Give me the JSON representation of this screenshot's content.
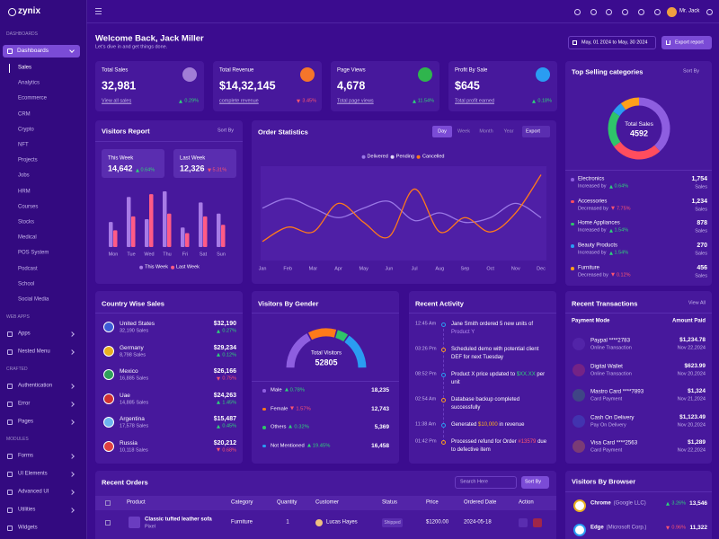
{
  "brand": "zynix",
  "topbar": {
    "user": "Mr. Jack"
  },
  "sidebar": {
    "sections": [
      {
        "title": "DASHBOARDS",
        "items": [
          {
            "label": "Dashboards",
            "children": [
              "Sales",
              "Analytics",
              "Ecommerce",
              "CRM",
              "Crypto",
              "NFT",
              "Projects",
              "Jobs",
              "HRM",
              "Courses",
              "Stocks",
              "Medical",
              "POS System",
              "Podcast",
              "School",
              "Social Media"
            ]
          }
        ]
      },
      {
        "title": "WEB APPS",
        "items": [
          {
            "label": "Apps"
          },
          {
            "label": "Nested Menu"
          }
        ]
      },
      {
        "title": "CRAFTED",
        "items": [
          {
            "label": "Authentication"
          },
          {
            "label": "Error"
          },
          {
            "label": "Pages"
          }
        ]
      },
      {
        "title": "MODULES",
        "items": [
          {
            "label": "Forms"
          },
          {
            "label": "UI Elements"
          },
          {
            "label": "Advanced UI"
          },
          {
            "label": "Utilities"
          },
          {
            "label": "Widgets"
          }
        ]
      }
    ]
  },
  "header": {
    "title": "Welcome Back, Jack Miller",
    "subtitle": "Let's dive in and get things done.",
    "date_range": "May, 01 2024 to May, 30 2024",
    "export": "Export report"
  },
  "stats": [
    {
      "label": "Total Sales",
      "value": "32,981",
      "link": "View all sales",
      "change": "0.29%",
      "trend": "up"
    },
    {
      "label": "Total Revenue",
      "value": "$14,32,145",
      "link": "complete revenue",
      "change": "3.45%",
      "trend": "down"
    },
    {
      "label": "Page Views",
      "value": "4,678",
      "link": "Total page views",
      "change": "11.54%",
      "trend": "up"
    },
    {
      "label": "Profit By Sale",
      "value": "$645",
      "link": "Total profit earned",
      "change": "0.18%",
      "trend": "up"
    }
  ],
  "top_selling": {
    "title": "Top Selling categories",
    "sort": "Sort By",
    "center_label": "Total Sales",
    "center_value": "4592",
    "items": [
      {
        "name": "Electronics",
        "note": "Increased by",
        "change": "0.64%",
        "trend": "up",
        "value": 1754,
        "value_label": "1,754",
        "unit": "Sales",
        "color": "#8e5ee0"
      },
      {
        "name": "Accessories",
        "note": "Decreased by",
        "change": "7.75%",
        "trend": "down",
        "value": 1234,
        "value_label": "1,234",
        "unit": "Sales",
        "color": "#ff4d5e"
      },
      {
        "name": "Home Appliances",
        "note": "Increased by",
        "change": "1.54%",
        "trend": "up",
        "value": 878,
        "value_label": "878",
        "unit": "Sales",
        "color": "#2fc46a"
      },
      {
        "name": "Beauty Products",
        "note": "Increased by",
        "change": "1.54%",
        "trend": "up",
        "value": 270,
        "value_label": "270",
        "unit": "Sales",
        "color": "#2a9cf2"
      },
      {
        "name": "Furniture",
        "note": "Decreased by",
        "change": "0.12%",
        "trend": "down",
        "value": 456,
        "value_label": "456",
        "unit": "Sales",
        "color": "#ff9f1c"
      }
    ]
  },
  "visitors_report": {
    "title": "Visitors Report",
    "sort": "Sort By",
    "summary": [
      {
        "label": "This Week",
        "value": "14,642",
        "change": "0.64%",
        "trend": "up"
      },
      {
        "label": "Last Week",
        "value": "12,326",
        "change": "5.31%",
        "trend": "down"
      }
    ],
    "days": [
      "Mon",
      "Tue",
      "Wed",
      "Thu",
      "Fri",
      "Sat",
      "Sun"
    ],
    "series": [
      {
        "name": "This Week",
        "color": "#a77be6",
        "values": [
          45,
          90,
          50,
          100,
          35,
          80,
          60
        ]
      },
      {
        "name": "Last Week",
        "color": "#ff5b86",
        "values": [
          30,
          55,
          95,
          60,
          25,
          55,
          40
        ]
      }
    ]
  },
  "order_statistics": {
    "title": "Order Statistics",
    "tabs": [
      "Day",
      "Week",
      "Month",
      "Year"
    ],
    "active_tab": 0,
    "export": "Export",
    "months": [
      "Jan",
      "Feb",
      "Mar",
      "Apr",
      "May",
      "Jun",
      "Jul",
      "Aug",
      "Sep",
      "Oct",
      "Nov",
      "Dec"
    ],
    "series": [
      {
        "name": "Delivered",
        "color": "#9a78e6",
        "values": [
          55,
          65,
          55,
          45,
          55,
          62,
          42,
          50,
          40,
          45,
          60,
          45
        ]
      },
      {
        "name": "Pending",
        "color": "#e2d9f7",
        "values": [
          null,
          null,
          null,
          null,
          null,
          null,
          null,
          null,
          null,
          null,
          null,
          null
        ]
      },
      {
        "name": "Cancelled",
        "color": "#ff7a1a",
        "values": [
          20,
          35,
          30,
          60,
          40,
          25,
          75,
          30,
          45,
          30,
          50,
          90
        ]
      }
    ]
  },
  "country_sales": {
    "title": "Country Wise Sales",
    "rows": [
      {
        "country": "United States",
        "sales": "32,190 Sales",
        "amount": "$32,190",
        "change": "0.27%",
        "trend": "up"
      },
      {
        "country": "Germany",
        "sales": "8,798 Sales",
        "amount": "$29,234",
        "change": "0.12%",
        "trend": "up"
      },
      {
        "country": "Mexico",
        "sales": "16,885 Sales",
        "amount": "$26,166",
        "change": "0.75%",
        "trend": "down"
      },
      {
        "country": "Uae",
        "sales": "14,885 Sales",
        "amount": "$24,263",
        "change": "1.45%",
        "trend": "up"
      },
      {
        "country": "Argentina",
        "sales": "17,578 Sales",
        "amount": "$15,487",
        "change": "0.45%",
        "trend": "up"
      },
      {
        "country": "Russia",
        "sales": "10,118 Sales",
        "amount": "$20,212",
        "change": "0.68%",
        "trend": "down"
      }
    ]
  },
  "gender": {
    "title": "Visitors By Gender",
    "center_label": "Total Visitors",
    "center_value": "52805",
    "rows": [
      {
        "name": "Male",
        "change": "0.78%",
        "trend": "up",
        "value": 18235,
        "value_label": "18,235",
        "color": "#8e5ee0"
      },
      {
        "name": "Female",
        "change": "1.57%",
        "trend": "down",
        "value": 12743,
        "value_label": "12,743",
        "color": "#ff7a1a"
      },
      {
        "name": "Others",
        "change": "0.32%",
        "trend": "up",
        "value": 5369,
        "value_label": "5,369",
        "color": "#2fc46a"
      },
      {
        "name": "Not Mentioned",
        "change": "19.45%",
        "trend": "up",
        "value": 16458,
        "value_label": "16,458",
        "color": "#2a9cf2"
      }
    ]
  },
  "activity": {
    "title": "Recent Activity",
    "items": [
      {
        "time": "12:45 Am",
        "text": [
          "Jane Smith ordered 5 new units of ",
          "Product Y"
        ]
      },
      {
        "time": "03:26 Pm",
        "text": [
          "Scheduled demo with potential client DEF for next Tuesday"
        ]
      },
      {
        "time": "08:52 Pm",
        "text": [
          "Product X price updated to ",
          "$XX.XX",
          " per unit"
        ]
      },
      {
        "time": "02:54 Am",
        "text": [
          "Database backup completed successfully"
        ]
      },
      {
        "time": "11:38 Am",
        "text": [
          "Generated ",
          "$10,000",
          " in revenue"
        ]
      },
      {
        "time": "01:42 Pm",
        "text": [
          "Processed refund for Order ",
          "#13579",
          " due to defective item"
        ]
      }
    ]
  },
  "transactions": {
    "title": "Recent Transactions",
    "view_all": "View All",
    "headers": [
      "Payment Mode",
      "Amount Paid"
    ],
    "rows": [
      {
        "name": "Paypal ****2783",
        "type": "Online Transaction",
        "amount": "$1,234.78",
        "date": "Nov 22,2024"
      },
      {
        "name": "Digital Wallet",
        "type": "Online Transaction",
        "amount": "$623.99",
        "date": "Nov 20,2024"
      },
      {
        "name": "Mastro Card ****7893",
        "type": "Card Payment",
        "amount": "$1,324",
        "date": "Nov 21,2024"
      },
      {
        "name": "Cash On Delivery",
        "type": "Pay On Delivery",
        "amount": "$1,123.49",
        "date": "Nov 20,2024"
      },
      {
        "name": "Visa Card ****2563",
        "type": "Card Payment",
        "amount": "$1,289",
        "date": "Nov 22,2024"
      }
    ]
  },
  "orders": {
    "title": "Recent Orders",
    "search": "Search Here",
    "sort": "Sort By",
    "headers": [
      "Product",
      "Category",
      "Quantity",
      "Customer",
      "Status",
      "Price",
      "Ordered Date",
      "Action"
    ],
    "rows": [
      {
        "product": "Classic tufted leather sofa",
        "brand": "Pixel",
        "category": "Furniture",
        "quantity": "1",
        "customer": "Lucas Hayes",
        "status": "Shipped",
        "price": "$1200.00",
        "date": "2024-05-18"
      }
    ]
  },
  "browser": {
    "title": "Visitors By Browser",
    "rows": [
      {
        "name": "Chrome",
        "company": "(Google LLC)",
        "change": "3.26%",
        "trend": "up",
        "value": "13,546"
      },
      {
        "name": "Edge",
        "company": "(Microsoft Corp.)",
        "change": "0.96%",
        "trend": "down",
        "value": "11,322"
      }
    ]
  }
}
